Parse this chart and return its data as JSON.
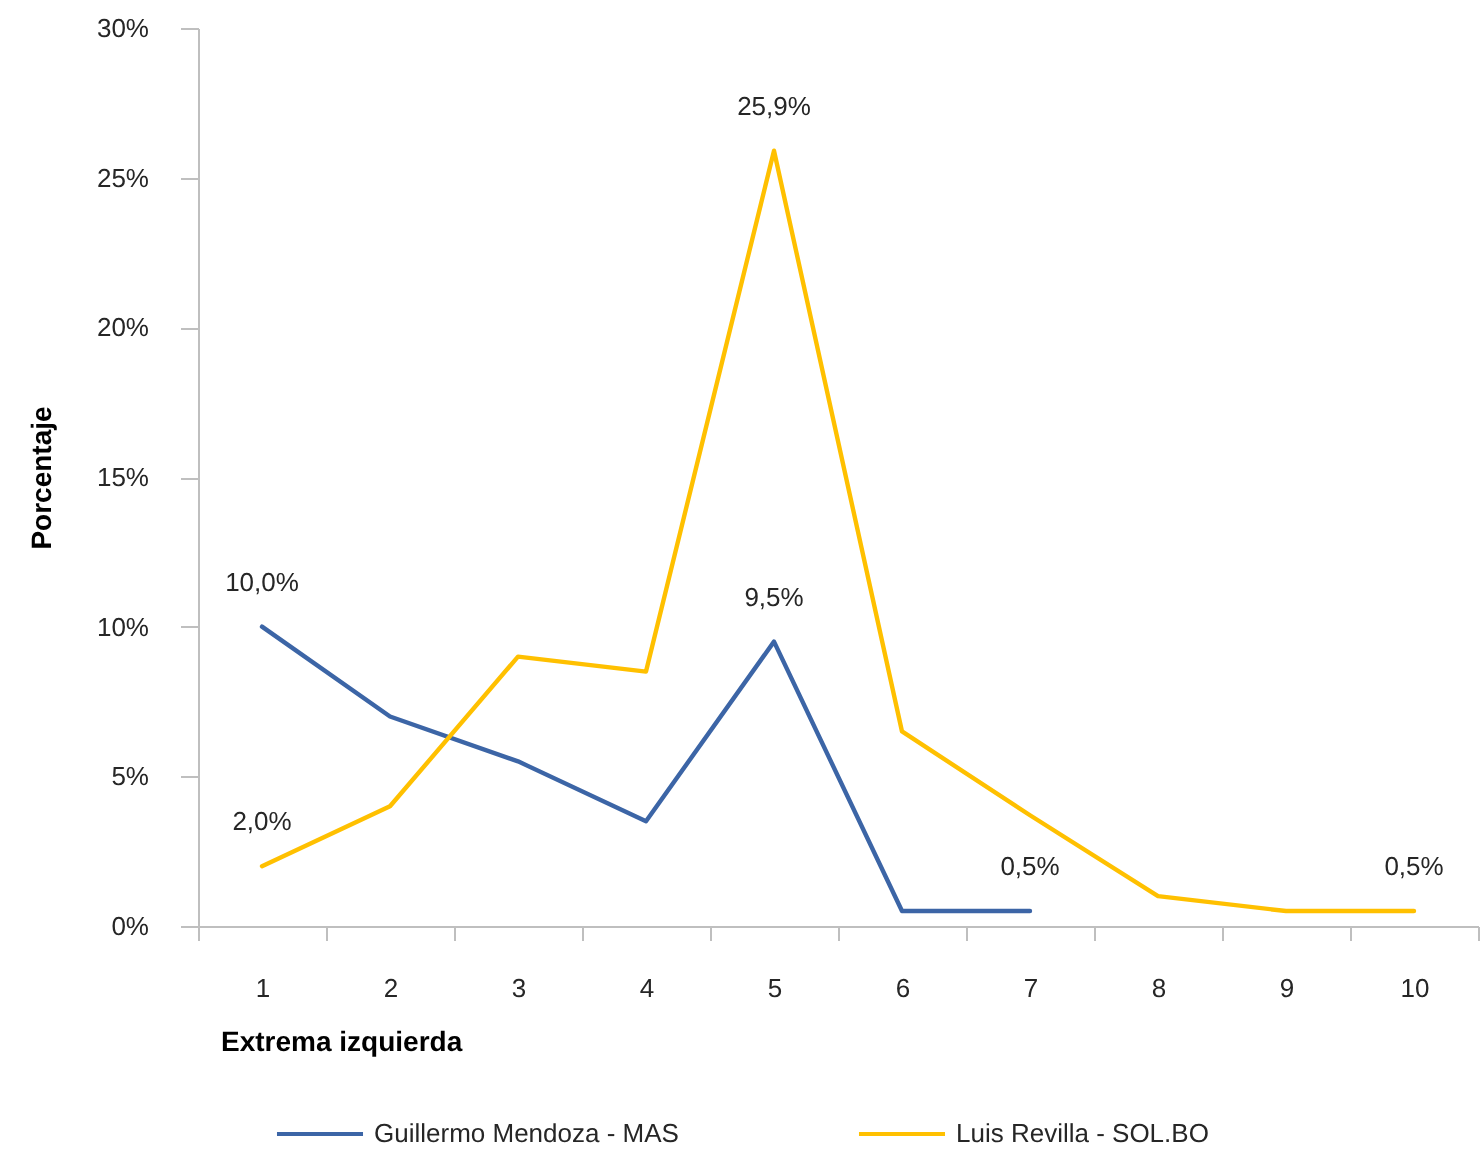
{
  "chart_data": {
    "type": "line",
    "xlabel": "Extrema izquierda",
    "ylabel": "Porcentaje",
    "categories": [
      "1",
      "2",
      "3",
      "4",
      "5",
      "6",
      "7",
      "8",
      "9",
      "10"
    ],
    "series": [
      {
        "name": "Guillermo Mendoza - MAS",
        "color": "#3c65a6",
        "values": [
          10.0,
          7.0,
          5.5,
          3.5,
          9.5,
          0.5,
          0.5,
          null,
          null,
          null
        ],
        "value_labels": [
          "10,0%",
          null,
          null,
          null,
          "9,5%",
          null,
          "0,5%",
          null,
          null,
          null
        ]
      },
      {
        "name": "Luis Revilla - SOL.BO",
        "color": "#ffc000",
        "values": [
          2.0,
          4.0,
          9.0,
          8.5,
          25.9,
          6.5,
          3.7,
          1.0,
          0.5,
          0.5
        ],
        "value_labels": [
          "2,0%",
          null,
          null,
          null,
          "25,9%",
          null,
          null,
          null,
          null,
          "0,5%"
        ]
      }
    ],
    "ylim": [
      0,
      30
    ],
    "yticks": [
      {
        "value": 0,
        "label": "0%"
      },
      {
        "value": 5,
        "label": "5%"
      },
      {
        "value": 10,
        "label": "10%"
      },
      {
        "value": 15,
        "label": "15%"
      },
      {
        "value": 20,
        "label": "20%"
      },
      {
        "value": 25,
        "label": "25%"
      },
      {
        "value": 30,
        "label": "30%"
      }
    ],
    "grid": false,
    "legend": "bottom"
  }
}
